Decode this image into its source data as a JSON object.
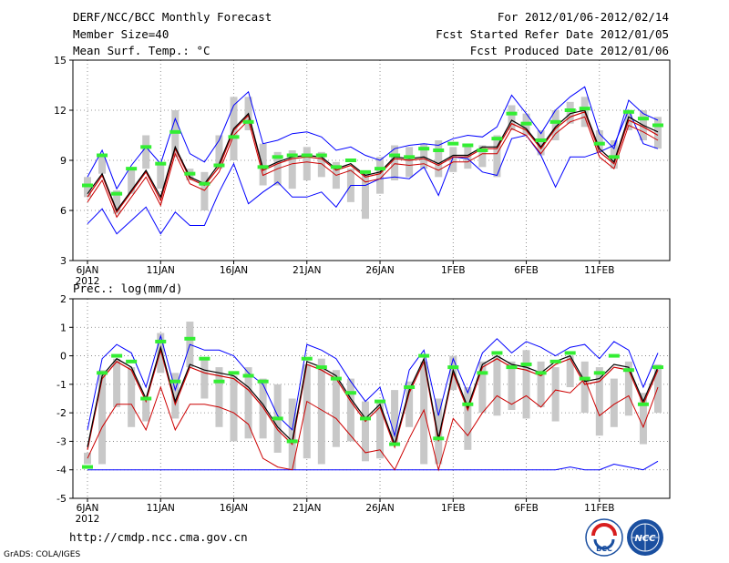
{
  "header": {
    "title": "DERF/NCC/BCC Monthly Forecast",
    "member_size": "Member Size=40",
    "variable": "Mean Surf. Temp.: °C",
    "period": "For 2012/01/06-2012/02/14",
    "fcst_started": "Fcst Started Refer Date 2012/01/05",
    "fcst_produced": "Fcst Produced Date 2012/01/06"
  },
  "footer": {
    "url": "http://cmdp.ncc.cma.gov.cn",
    "credit": "GrADS: COLA/IGES",
    "logo_bcc": "BCC",
    "logo_ncc": "NCC"
  },
  "colors": {
    "max_line": "#0000ff",
    "min_line": "#0000ff",
    "mean_line": "#000000",
    "median_line": "#cc0000",
    "low_line": "#cc0000",
    "box": "#c8c8c8",
    "obs_marker": "#33ee33",
    "grid": "#777777"
  },
  "chart_data": [
    {
      "type": "line",
      "title": "Mean Surf. Temp.: °C",
      "xlabel": "",
      "ylabel": "°C",
      "ylim": [
        3,
        15
      ],
      "yticks": [
        "3",
        "6",
        "9",
        "12",
        "15"
      ],
      "xtick_days": [
        1,
        6,
        11,
        16,
        21,
        26,
        31,
        36
      ],
      "xtick_labels": [
        "6JAN",
        "11JAN",
        "16JAN",
        "21JAN",
        "26JAN",
        "1FEB",
        "6FEB",
        "11FEB"
      ],
      "year_label": "2012",
      "day": [
        1,
        2,
        3,
        4,
        5,
        6,
        7,
        8,
        9,
        10,
        11,
        12,
        13,
        14,
        15,
        16,
        17,
        18,
        19,
        20,
        21,
        22,
        23,
        24,
        25,
        26,
        27,
        28,
        29,
        30,
        31,
        32,
        33,
        34,
        35,
        36,
        37,
        38,
        39,
        40
      ],
      "series": [
        {
          "name": "max",
          "values": [
            8.0,
            9.6,
            7.3,
            8.7,
            9.8,
            8.8,
            11.5,
            9.4,
            8.9,
            10.2,
            12.3,
            13.1,
            10.0,
            10.2,
            10.6,
            10.7,
            10.4,
            9.6,
            9.8,
            9.3,
            9.0,
            9.7,
            9.9,
            10.0,
            9.9,
            10.3,
            10.5,
            10.4,
            11.0,
            12.9,
            11.8,
            10.6,
            12.0,
            12.8,
            13.4,
            10.6,
            9.7,
            12.6,
            11.8,
            11.4
          ]
        },
        {
          "name": "mean",
          "values": [
            7.0,
            8.2,
            6.0,
            7.2,
            8.4,
            6.8,
            9.8,
            8.0,
            7.6,
            8.8,
            10.9,
            11.8,
            8.5,
            8.9,
            9.2,
            9.3,
            9.2,
            8.5,
            8.8,
            8.1,
            8.3,
            9.2,
            9.1,
            9.2,
            8.8,
            9.3,
            9.3,
            9.8,
            9.8,
            11.4,
            10.9,
            9.8,
            11.0,
            11.8,
            12.0,
            9.7,
            8.9,
            11.6,
            11.1,
            10.7
          ]
        },
        {
          "name": "median",
          "values": [
            6.8,
            8.1,
            5.9,
            7.1,
            8.3,
            6.6,
            9.7,
            7.9,
            7.5,
            8.6,
            10.8,
            11.7,
            8.4,
            8.8,
            9.1,
            9.2,
            9.1,
            8.4,
            8.7,
            8.0,
            8.2,
            9.1,
            9.0,
            9.1,
            8.7,
            9.2,
            9.2,
            9.7,
            9.7,
            11.2,
            10.8,
            9.7,
            10.9,
            11.6,
            11.9,
            9.5,
            8.8,
            11.4,
            11.0,
            10.5
          ]
        },
        {
          "name": "low",
          "values": [
            6.5,
            7.8,
            5.6,
            6.8,
            8.0,
            6.3,
            9.4,
            7.6,
            7.2,
            8.3,
            10.5,
            11.4,
            8.1,
            8.5,
            8.8,
            8.9,
            8.8,
            8.1,
            8.4,
            7.7,
            7.9,
            8.8,
            8.7,
            8.8,
            8.4,
            8.9,
            8.9,
            9.4,
            9.4,
            10.9,
            10.5,
            9.4,
            10.6,
            11.3,
            11.6,
            9.2,
            8.5,
            11.1,
            10.7,
            10.2
          ]
        },
        {
          "name": "min",
          "values": [
            5.2,
            6.1,
            4.6,
            5.4,
            6.2,
            4.6,
            5.9,
            5.1,
            5.1,
            7.1,
            8.8,
            6.4,
            7.1,
            7.7,
            6.8,
            6.8,
            7.1,
            6.2,
            7.5,
            7.5,
            7.9,
            8.0,
            7.9,
            8.6,
            6.9,
            9.2,
            9.1,
            8.3,
            8.1,
            10.3,
            10.5,
            9.3,
            7.4,
            9.2,
            9.2,
            9.5,
            9.9,
            12.0,
            10.0,
            9.7
          ]
        }
      ],
      "boxes": [
        [
          6.8,
          8.0
        ],
        [
          8.2,
          9.4
        ],
        [
          5.8,
          7.2
        ],
        [
          7.0,
          8.5
        ],
        [
          8.5,
          10.5
        ],
        [
          7.3,
          8.8
        ],
        [
          9.2,
          12.0
        ],
        [
          7.8,
          8.5
        ],
        [
          6.0,
          8.3
        ],
        [
          8.5,
          10.5
        ],
        [
          9.0,
          12.8
        ],
        [
          10.8,
          12.8
        ],
        [
          7.5,
          10.0
        ],
        [
          7.5,
          9.5
        ],
        [
          7.3,
          9.6
        ],
        [
          7.8,
          9.8
        ],
        [
          8.0,
          9.5
        ],
        [
          7.3,
          8.9
        ],
        [
          6.5,
          8.5
        ],
        [
          5.5,
          8.3
        ],
        [
          7.0,
          9.2
        ],
        [
          7.8,
          9.9
        ],
        [
          8.0,
          9.8
        ],
        [
          8.5,
          10.0
        ],
        [
          8.0,
          10.2
        ],
        [
          8.3,
          9.8
        ],
        [
          8.5,
          10.0
        ],
        [
          8.6,
          9.9
        ],
        [
          8.0,
          10.5
        ],
        [
          10.8,
          12.3
        ],
        [
          10.5,
          11.8
        ],
        [
          9.3,
          10.8
        ],
        [
          10.2,
          12.0
        ],
        [
          11.2,
          12.5
        ],
        [
          11.0,
          12.8
        ],
        [
          9.5,
          10.8
        ],
        [
          8.5,
          10.2
        ],
        [
          10.8,
          12.0
        ],
        [
          10.2,
          12.0
        ],
        [
          9.7,
          11.6
        ]
      ],
      "obs": [
        7.5,
        9.3,
        7.0,
        8.5,
        9.8,
        8.8,
        10.7,
        8.2,
        7.6,
        8.7,
        10.4,
        11.3,
        8.6,
        9.2,
        9.3,
        9.3,
        9.3,
        8.6,
        9.0,
        8.3,
        8.5,
        9.3,
        9.2,
        9.7,
        9.6,
        10.0,
        9.9,
        9.6,
        10.3,
        11.8,
        11.2,
        10.2,
        11.3,
        12.0,
        12.1,
        10.0,
        9.2,
        11.9,
        11.5,
        11.1
      ]
    },
    {
      "type": "line",
      "title": "Prec.: log(mm/d)",
      "xlabel": "",
      "ylabel": "log(mm/d)",
      "ylim": [
        -5,
        2
      ],
      "yticks": [
        "-5",
        "-4",
        "-3",
        "-2",
        "-1",
        "0",
        "1",
        "2"
      ],
      "xtick_days": [
        1,
        6,
        11,
        16,
        21,
        26,
        31,
        36
      ],
      "xtick_labels": [
        "6JAN",
        "11JAN",
        "16JAN",
        "21JAN",
        "26JAN",
        "1FEB",
        "6FEB",
        "11FEB"
      ],
      "year_label": "2012",
      "day": [
        1,
        2,
        3,
        4,
        5,
        6,
        7,
        8,
        9,
        10,
        11,
        12,
        13,
        14,
        15,
        16,
        17,
        18,
        19,
        20,
        21,
        22,
        23,
        24,
        25,
        26,
        27,
        28,
        29,
        30,
        31,
        32,
        33,
        34,
        35,
        36,
        37,
        38,
        39,
        40
      ],
      "series": [
        {
          "name": "max",
          "values": [
            -2.6,
            -0.1,
            0.4,
            0.1,
            -1.1,
            0.7,
            -1.2,
            0.4,
            0.2,
            0.2,
            0.0,
            -0.6,
            -1.0,
            -2.1,
            -2.6,
            0.4,
            0.2,
            -0.1,
            -0.9,
            -1.6,
            -1.1,
            -2.8,
            -0.5,
            0.2,
            -2.1,
            -0.1,
            -1.3,
            0.1,
            0.6,
            0.1,
            0.5,
            0.3,
            0.0,
            0.3,
            0.4,
            -0.1,
            0.5,
            0.2,
            -1.1,
            0.1
          ]
        },
        {
          "name": "mean",
          "values": [
            -3.2,
            -0.7,
            -0.1,
            -0.4,
            -1.5,
            0.3,
            -1.6,
            -0.3,
            -0.5,
            -0.6,
            -0.7,
            -1.1,
            -1.7,
            -2.5,
            -3.0,
            -0.2,
            -0.4,
            -0.7,
            -1.5,
            -2.2,
            -1.7,
            -3.1,
            -1.2,
            -0.1,
            -2.9,
            -0.5,
            -1.8,
            -0.3,
            0.0,
            -0.3,
            -0.4,
            -0.6,
            -0.2,
            0.0,
            -0.9,
            -0.8,
            -0.3,
            -0.4,
            -1.6,
            -0.4
          ]
        },
        {
          "name": "median",
          "values": [
            -3.3,
            -0.8,
            -0.2,
            -0.5,
            -1.6,
            0.2,
            -1.7,
            -0.4,
            -0.6,
            -0.7,
            -0.8,
            -1.2,
            -1.8,
            -2.6,
            -3.1,
            -0.3,
            -0.5,
            -0.8,
            -1.6,
            -2.3,
            -1.8,
            -3.2,
            -1.3,
            -0.2,
            -3.0,
            -0.6,
            -1.9,
            -0.4,
            -0.1,
            -0.4,
            -0.5,
            -0.7,
            -0.3,
            -0.1,
            -1.0,
            -0.9,
            -0.4,
            -0.5,
            -1.7,
            -0.5
          ]
        },
        {
          "name": "low",
          "values": [
            -3.6,
            -2.5,
            -1.7,
            -1.7,
            -2.6,
            -1.1,
            -2.6,
            -1.7,
            -1.7,
            -1.8,
            -2.0,
            -2.4,
            -3.6,
            -3.9,
            -4.0,
            -1.6,
            -1.9,
            -2.2,
            -2.8,
            -3.4,
            -3.3,
            -4.0,
            -2.9,
            -1.9,
            -4.0,
            -2.2,
            -2.8,
            -2.0,
            -1.4,
            -1.7,
            -1.4,
            -1.8,
            -1.2,
            -1.3,
            -0.8,
            -2.1,
            -1.7,
            -1.4,
            -2.5,
            -1.1
          ]
        },
        {
          "name": "min",
          "values": [
            -4.0,
            -4.0,
            -4.0,
            -4.0,
            -4.0,
            -4.0,
            -4.0,
            -4.0,
            -4.0,
            -4.0,
            -4.0,
            -4.0,
            -4.0,
            -4.0,
            -4.0,
            -4.0,
            -4.0,
            -4.0,
            -4.0,
            -4.0,
            -4.0,
            -4.0,
            -4.0,
            -4.0,
            -4.0,
            -4.0,
            -4.0,
            -4.0,
            -4.0,
            -4.0,
            -4.0,
            -4.0,
            -4.0,
            -3.9,
            -4.0,
            -4.0,
            -3.8,
            -3.9,
            -4.0,
            -3.7
          ]
        }
      ],
      "boxes": [
        [
          -3.8,
          -3.4
        ],
        [
          -3.8,
          -0.5
        ],
        [
          -1.8,
          -0.1
        ],
        [
          -2.5,
          -0.4
        ],
        [
          -2.3,
          -1.5
        ],
        [
          -0.6,
          0.8
        ],
        [
          -2.2,
          -0.6
        ],
        [
          -0.4,
          1.2
        ],
        [
          -1.5,
          -0.1
        ],
        [
          -2.5,
          -0.4
        ],
        [
          -3.0,
          -0.7
        ],
        [
          -2.9,
          -0.4
        ],
        [
          -2.9,
          -0.8
        ],
        [
          -3.4,
          -1.0
        ],
        [
          -4.0,
          -1.5
        ],
        [
          -3.6,
          -0.3
        ],
        [
          -3.8,
          -0.1
        ],
        [
          -3.2,
          -0.5
        ],
        [
          -3.0,
          -0.8
        ],
        [
          -3.7,
          -1.6
        ],
        [
          -3.6,
          -1.6
        ],
        [
          -3.1,
          -1.2
        ],
        [
          -2.5,
          -0.9
        ],
        [
          -3.8,
          -0.2
        ],
        [
          -3.8,
          -1.5
        ],
        [
          -1.2,
          0.0
        ],
        [
          -3.3,
          -1.1
        ],
        [
          -2.0,
          -0.2
        ],
        [
          -2.1,
          0.0
        ],
        [
          -1.9,
          -0.2
        ],
        [
          -2.2,
          0.2
        ],
        [
          -1.8,
          -0.2
        ],
        [
          -2.3,
          -0.4
        ],
        [
          -1.1,
          0.0
        ],
        [
          -2.0,
          -0.2
        ],
        [
          -2.8,
          -0.4
        ],
        [
          -2.5,
          -0.8
        ],
        [
          -2.1,
          -0.2
        ],
        [
          -3.1,
          -1.3
        ],
        [
          -2.0,
          -0.3
        ]
      ],
      "obs": [
        -3.9,
        -0.6,
        0.0,
        -0.2,
        -1.5,
        0.5,
        -0.9,
        0.6,
        -0.1,
        -0.9,
        -0.6,
        -0.7,
        -0.9,
        -2.2,
        -3.0,
        -0.1,
        -0.4,
        -0.8,
        -1.3,
        -2.2,
        -1.6,
        -3.1,
        -1.1,
        0.0,
        -2.9,
        -0.4,
        -1.7,
        -0.6,
        0.1,
        -0.4,
        -0.3,
        -0.6,
        -0.2,
        0.1,
        -0.8,
        -0.6,
        0.0,
        -0.5,
        -1.7,
        -0.4
      ]
    }
  ]
}
